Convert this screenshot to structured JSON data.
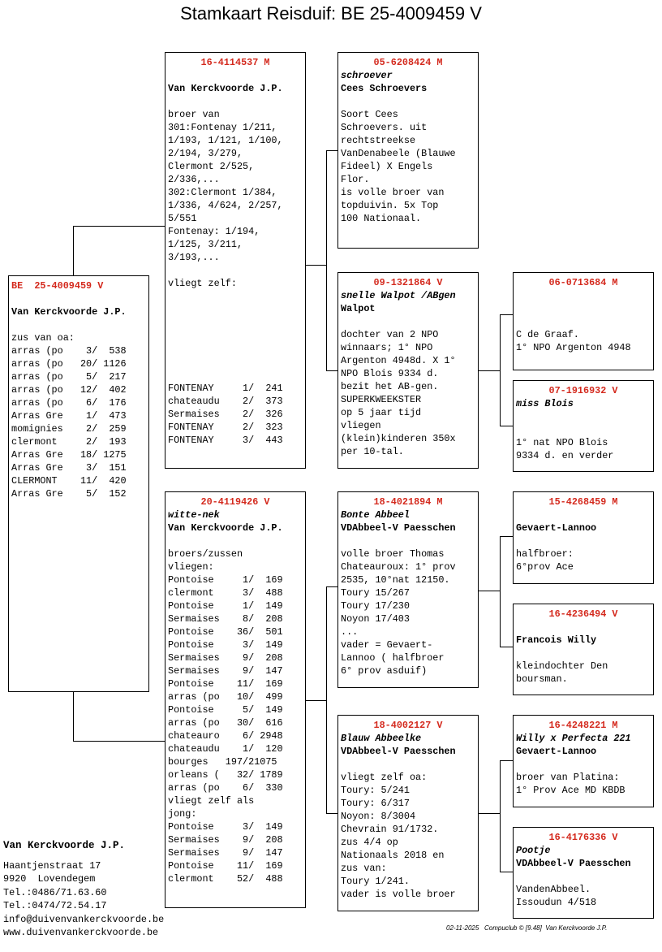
{
  "title": "Stamkaart Reisduif: BE  25-4009459 V",
  "boxes": [
    {
      "ring": "BE  25-4009459 V",
      "owner": "Van Kerckvoorde J.P.",
      "text": [
        [
          "zus van oa:",
          "arras (po    3/  538",
          "arras (po   20/ 1126",
          "arras (po    5/  217",
          "arras (po   12/  402",
          "arras (po    6/  176",
          "Arras Gre    1/  473",
          "momignies    2/  259",
          "clermont     2/  193",
          "Arras Gre   18/ 1275",
          "Arras Gre    3/  151",
          "CLERMONT    11/  420",
          "Arras Gre    5/  152"
        ]
      ]
    },
    {
      "ring": "16-4114537 M",
      "owner": "Van Kerckvoorde J.P.",
      "text": [
        [
          "broer van",
          "301:Fontenay 1/211,",
          "1/193, 1/121, 1/100,",
          "2/194, 3/279,",
          "Clermont 2/525,",
          "2/336,...",
          "302:Clermont 1/384,",
          "1/336, 4/624, 2/257,",
          "5/551",
          "Fontenay: 1/194,",
          "1/125, 3/211,",
          "3/193,..."
        ],
        [
          "vliegt zelf:"
        ]
      ],
      "results": [
        "FONTENAY     1/  241",
        "chateaudu    2/  373",
        "Sermaises    2/  326",
        "FONTENAY     2/  323",
        "FONTENAY     3/  443"
      ]
    },
    {
      "ring": "20-4119426 V",
      "name": "witte-nek",
      "owner": "Van Kerckvoorde J.P.",
      "text": [
        [
          "broers/zussen",
          "vliegen:",
          "Pontoise     1/  169",
          "clermont     3/  488",
          "Pontoise     1/  149",
          "Sermaises    8/  208",
          "Pontoise    36/  501",
          "Pontoise     3/  149",
          "Sermaises    9/  208",
          "Sermaises    9/  147",
          "Pontoise    11/  169",
          "arras (po   10/  499",
          "Pontoise     5/  149",
          "arras (po   30/  616",
          "chateauro    6/ 2948",
          "chateaudu    1/  120",
          "bourges   197/21075",
          "orleans (   32/ 1789",
          "arras (po    6/  330",
          "vliegt zelf als",
          "jong:",
          "Pontoise     3/  149",
          "Sermaises    9/  208",
          "Sermaises    9/  147",
          "Pontoise    11/  169",
          "clermont    52/  488"
        ]
      ]
    },
    {
      "ring": "05-6208424 M",
      "name": "schroever",
      "owner": "Cees Schroevers",
      "text": [
        [
          "Soort Cees",
          "Schroevers. uit",
          "rechtstreekse",
          "VanDenabeele (Blauwe",
          "Fideel) X Engels",
          "Flor.",
          "is volle broer van",
          "topduivin. 5x Top",
          "100 Nationaal."
        ]
      ]
    },
    {
      "ring": "09-1321864 V",
      "name": "snelle Walpot /ABgen",
      "owner": "Walpot",
      "text": [
        [
          "dochter van 2 NPO",
          "winnaars; 1° NPO",
          "Argenton 4948d. X 1°",
          "NPO Blois 9334 d.",
          "bezit het AB-gen.",
          "SUPERKWEEKSTER",
          "op 5 jaar tijd",
          "vliegen",
          "(klein)kinderen 350x",
          "per 10-tal."
        ]
      ]
    },
    {
      "ring": "18-4021894 M",
      "name": "Bonte Abbeel",
      "owner": "VDAbbeel-V Paesschen",
      "text": [
        [
          "volle broer Thomas",
          "Chateauroux: 1° prov",
          "2535, 10°nat 12150.",
          "Toury 15/267",
          "Toury 17/230",
          "Noyon 17/403",
          "...",
          "vader = Gevaert-",
          "Lannoo ( halfbroer",
          "6° prov asduif)"
        ]
      ]
    },
    {
      "ring": "18-4002127 V",
      "name": "Blauw Abbeelke",
      "owner": "VDAbbeel-V Paesschen",
      "text": [
        [
          "vliegt zelf oa:",
          "Toury: 5/241",
          "Toury: 6/317",
          "Noyon: 8/3004",
          "Chevrain 91/1732.",
          "zus 4/4 op",
          "Nationaals 2018 en",
          "zus van:",
          "Toury 1/241.",
          "vader is volle broer"
        ]
      ]
    },
    {
      "ring": "06-0713684 M",
      "text": [
        [
          "C de Graaf.",
          "1° NPO Argenton 4948"
        ]
      ]
    },
    {
      "ring": "07-1916932 V",
      "name": "miss Blois",
      "text": [
        [
          "1° nat NPO Blois",
          "9334 d. en verder"
        ]
      ]
    },
    {
      "ring": "15-4268459 M",
      "owner": "Gevaert-Lannoo",
      "text": [
        [
          "halfbroer:",
          "6°prov Ace"
        ]
      ]
    },
    {
      "ring": "16-4236494 V",
      "owner": "Francois Willy",
      "text": [
        [
          "kleindochter Den",
          "boursman."
        ]
      ]
    },
    {
      "ring": "16-4248221 M",
      "name": "Willy x Perfecta 221",
      "owner": "Gevaert-Lannoo",
      "text": [
        [
          "broer van Platina:",
          "1° Prov Ace MD KBDB"
        ]
      ]
    },
    {
      "ring": "16-4176336 V",
      "name": "Pootje",
      "owner": "VDAbbeel-V Paesschen",
      "text": [
        [
          "VandenAbbeel.",
          "Issoudun 4/518"
        ]
      ]
    }
  ],
  "contact": {
    "name": "Van Kerckvoorde J.P.",
    "lines": [
      "Haantjenstraat 17",
      "9920  Lovendegem",
      "Tel.:0486/71.63.60",
      "Tel.:0474/72.54.17",
      "info@duivenvankerckvoorde.be",
      "www.duivenvankerckvoorde.be"
    ]
  },
  "footer": "02-11-2025   Compuclub © [9.48]  Van Kerckvoorde J.P."
}
